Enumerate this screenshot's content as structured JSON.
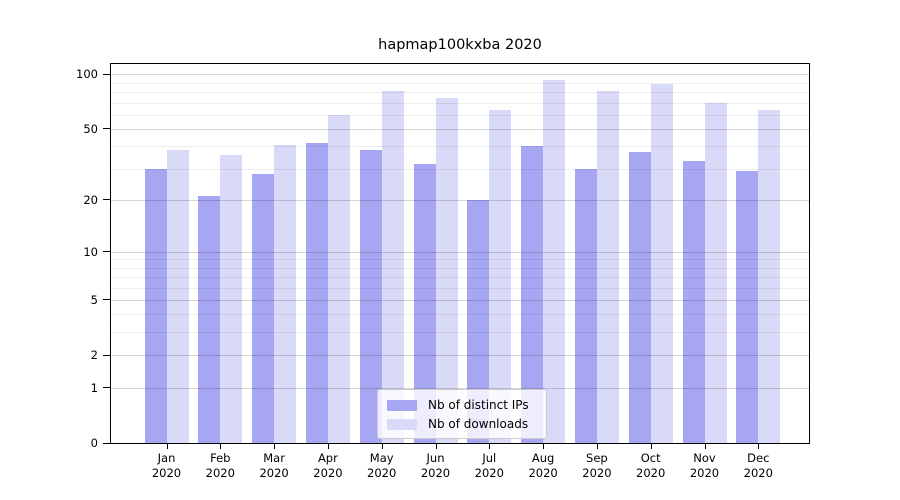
{
  "title": "hapmap100kxba 2020",
  "chart_data": {
    "type": "bar",
    "title": "hapmap100kxba 2020",
    "categories": [
      "Jan",
      "Feb",
      "Mar",
      "Apr",
      "May",
      "Jun",
      "Jul",
      "Aug",
      "Sep",
      "Oct",
      "Nov",
      "Dec"
    ],
    "year_label": "2020",
    "series": [
      {
        "name": "Nb of distinct IPs",
        "color": "#a6a6f3",
        "values": [
          30,
          21,
          28,
          42,
          38,
          32,
          20,
          40,
          30,
          37,
          33,
          29
        ]
      },
      {
        "name": "Nb of downloads",
        "color": "#d9d9f8",
        "values": [
          38,
          36,
          41,
          60,
          81,
          74,
          64,
          93,
          81,
          89,
          70,
          64
        ]
      }
    ],
    "yscale": "log1p",
    "ylim": [
      0,
      114
    ],
    "yticks": [
      100,
      50,
      20,
      10,
      5,
      2,
      1,
      0
    ],
    "ytick_labels": [
      "100",
      "50",
      "20",
      "10",
      "5",
      "2",
      "1",
      "0"
    ],
    "minor_yticks": [
      3,
      4,
      6,
      7,
      8,
      9,
      30,
      40,
      60,
      70,
      80,
      90
    ],
    "grid": true,
    "legend_position": "lower center",
    "colors": {
      "axis": "#000000",
      "major_grid": "#d6d6d6",
      "minor_grid": "#efefef"
    }
  }
}
